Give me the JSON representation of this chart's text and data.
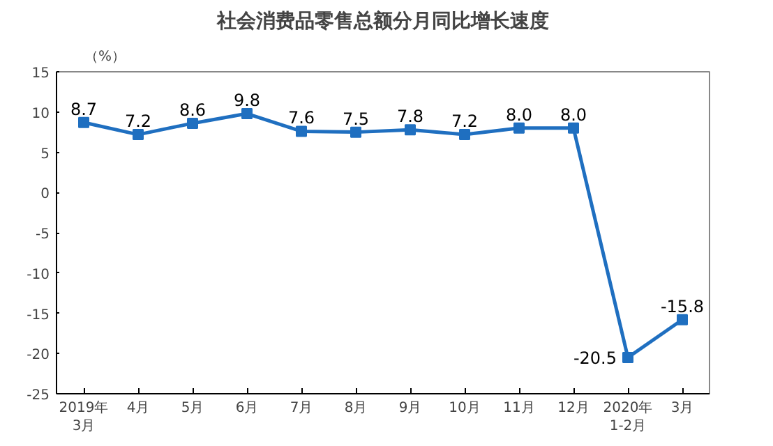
{
  "chart_data": {
    "type": "line",
    "title": "社会消费品零售总额分月同比增长速度",
    "ylabel": "（%）",
    "categories": [
      "2019年\n3月",
      "4月",
      "5月",
      "6月",
      "7月",
      "8月",
      "9月",
      "10月",
      "11月",
      "12月",
      "2020年\n1-2月",
      "3月"
    ],
    "series": [
      {
        "color": "#1f6fc0",
        "values": [
          8.7,
          7.2,
          8.6,
          9.8,
          7.6,
          7.5,
          7.8,
          7.2,
          8.0,
          8.0,
          -20.5,
          -15.8
        ],
        "value_labels": [
          "8.7",
          "7.2",
          "8.6",
          "9.8",
          "7.6",
          "7.5",
          "7.8",
          "7.2",
          "8.0",
          "8.0",
          "-20.5",
          "-15.8"
        ]
      }
    ],
    "ylim": [
      -25,
      15
    ],
    "yticks": [
      -25,
      -20,
      -15,
      -10,
      -5,
      0,
      5,
      10,
      15
    ],
    "marker": "square",
    "line_style": "solid",
    "grid": false
  }
}
